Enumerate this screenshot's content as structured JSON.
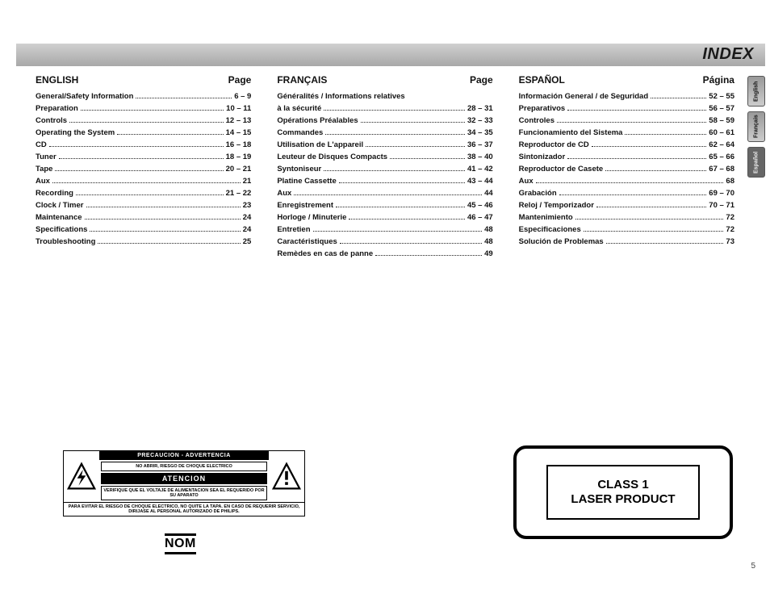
{
  "header": {
    "title": "INDEX"
  },
  "columns": [
    {
      "lang": "ENGLISH",
      "page_label": "Page",
      "items": [
        {
          "label": "General/Safety Information",
          "page": "6 – 9"
        },
        {
          "label": "Preparation",
          "page": "10 – 11"
        },
        {
          "label": "Controls",
          "page": "12 – 13"
        },
        {
          "label": "Operating the System",
          "page": "14 – 15"
        },
        {
          "label": "CD",
          "page": "16 – 18"
        },
        {
          "label": "Tuner",
          "page": "18 – 19"
        },
        {
          "label": "Tape",
          "page": "20 – 21"
        },
        {
          "label": "Aux",
          "page": "21"
        },
        {
          "label": "Recording",
          "page": "21 – 22"
        },
        {
          "label": "Clock / Timer",
          "page": "23"
        },
        {
          "label": "Maintenance",
          "page": "24"
        },
        {
          "label": "Specifications",
          "page": "24"
        },
        {
          "label": "Troubleshooting",
          "page": "25"
        }
      ]
    },
    {
      "lang": "FRANÇAIS",
      "page_label": "Page",
      "items": [
        {
          "label": "Généralités / Informations relatives",
          "page": ""
        },
        {
          "label": "à la sécurité",
          "page": "28 – 31"
        },
        {
          "label": "Opérations Préalables",
          "page": "32 – 33"
        },
        {
          "label": "Commandes",
          "page": "34 – 35"
        },
        {
          "label": "Utilisation de L'appareil",
          "page": "36 – 37"
        },
        {
          "label": "Leuteur de Disques Compacts",
          "page": "38 – 40"
        },
        {
          "label": "Syntoniseur",
          "page": "41 – 42"
        },
        {
          "label": "Platine Cassette",
          "page": "43 – 44"
        },
        {
          "label": "Aux",
          "page": "44"
        },
        {
          "label": "Enregistrement",
          "page": "45 – 46"
        },
        {
          "label": "Horloge / Minuterie",
          "page": "46 – 47"
        },
        {
          "label": "Entretien",
          "page": "48"
        },
        {
          "label": "Caractéristiques",
          "page": "48"
        },
        {
          "label": "Remèdes en cas de panne",
          "page": "49"
        }
      ]
    },
    {
      "lang": "ESPAÑOL",
      "page_label": "Página",
      "items": [
        {
          "label": "Información General / de Seguridad",
          "page": "52 – 55"
        },
        {
          "label": "Preparativos",
          "page": "56 – 57"
        },
        {
          "label": "Controles",
          "page": "58 – 59"
        },
        {
          "label": "Funcionamiento del Sistema",
          "page": "60 – 61"
        },
        {
          "label": "Reproductor de CD",
          "page": "62 – 64"
        },
        {
          "label": "Sintonizador",
          "page": "65 – 66"
        },
        {
          "label": "Reproductor de Casete",
          "page": "67 – 68"
        },
        {
          "label": "Aux",
          "page": "68"
        },
        {
          "label": "Grabación",
          "page": "69 – 70"
        },
        {
          "label": "Reloj / Temporizador",
          "page": "70 – 71"
        },
        {
          "label": "Mantenimiento",
          "page": "72"
        },
        {
          "label": "Especificaciones",
          "page": "72"
        },
        {
          "label": "Solución de Problemas",
          "page": "73"
        }
      ]
    }
  ],
  "side_tabs": [
    "English",
    "Français",
    "Español"
  ],
  "warning": {
    "top_bar": "PRECAUCION - ADVERTENCIA",
    "line1": "NO ABRIR, RIESGO DE CHOQUE ELECTRICO",
    "mid_bar": "ATENCION",
    "line2": "VERIFIQUE QUE EL VOLTAJE DE ALIMENTACION SEA EL REQUERIDO POR SU APARATO",
    "foot": "PARA EVITAR EL RIESGO DE CHOQUE ELECTRICO, NO QUITE LA TAPA. EN CASO DE REQUERIR SERVICIO, DIRIJASE AL PERSONAL AUTORIZADO DE PHILIPS."
  },
  "nom_label": "NOM",
  "laser": {
    "line1": "CLASS 1",
    "line2": "LASER PRODUCT"
  },
  "page_number": "5",
  "colors": {
    "text": "#111111",
    "band_top": "#d0d0d0",
    "band_bottom": "#a8a8a8",
    "black": "#000000"
  }
}
